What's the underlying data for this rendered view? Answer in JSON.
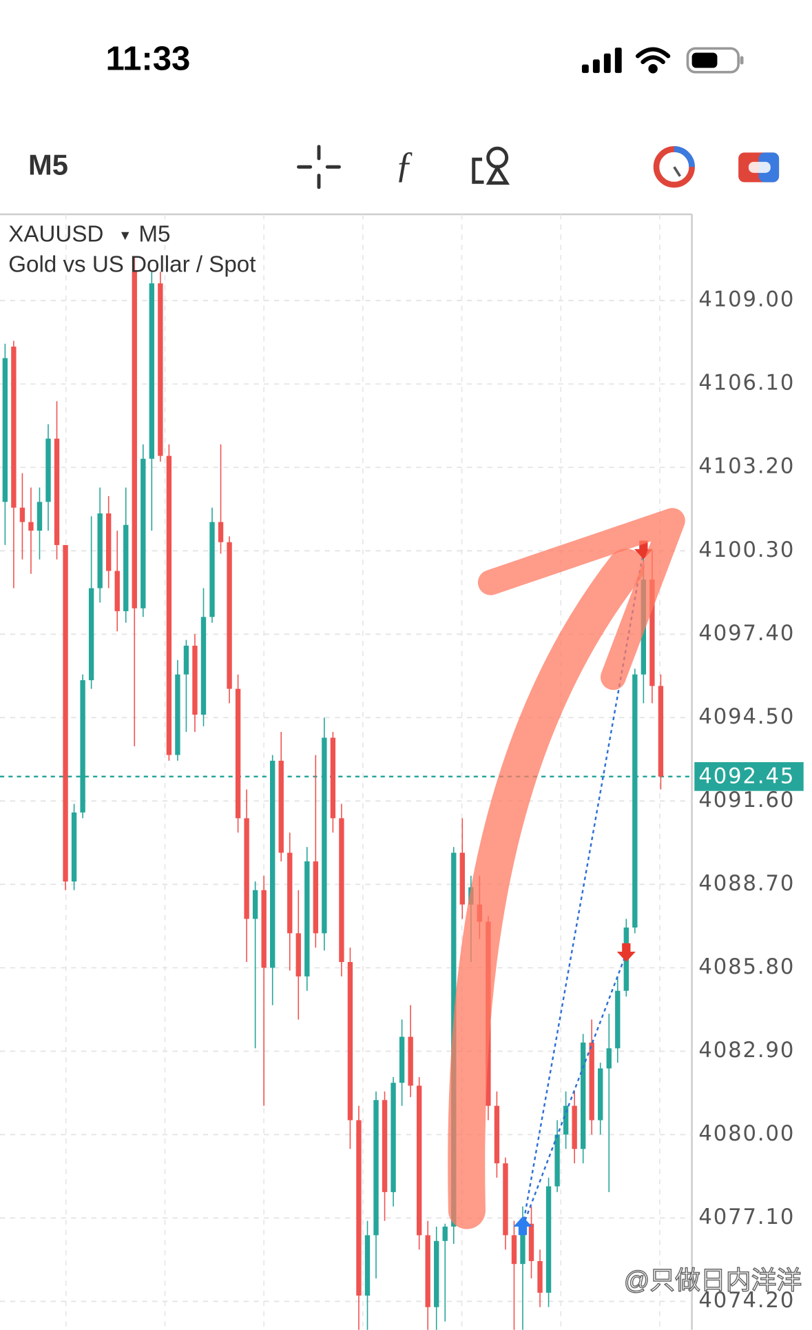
{
  "status_bar": {
    "time": "11:33"
  },
  "toolbar": {
    "timeframe": "M5"
  },
  "chart_data": {
    "type": "candlestick",
    "symbol": "XAUUSD",
    "timeframe": "M5",
    "subtitle": "Gold vs US Dollar / Spot",
    "up_color": "#26a69a",
    "down_color": "#ef5350",
    "categories": [
      null,
      null,
      null,
      null,
      null,
      null,
      null,
      null,
      null,
      null,
      null,
      null,
      null,
      null,
      null,
      null,
      null,
      null,
      null,
      null,
      null,
      null,
      null,
      null,
      null,
      null,
      null,
      null,
      null,
      null,
      null,
      null,
      null,
      null,
      null,
      null,
      null,
      null,
      null,
      null,
      null,
      null,
      null,
      null,
      null,
      null,
      null,
      null,
      null,
      null,
      null,
      null,
      null,
      null,
      null,
      null,
      null,
      null,
      null,
      null,
      null,
      null,
      null,
      null,
      null,
      null,
      null,
      null,
      null,
      null,
      null,
      null,
      null,
      null,
      null,
      null,
      null
    ],
    "open": [
      4102,
      4107.4,
      4101.8,
      4101.3,
      4101,
      4102,
      4104.2,
      4100.5,
      4088.8,
      4091.2,
      4095.8,
      4099,
      4101.6,
      4099.6,
      4098.2,
      4110,
      4098.3,
      4103.5,
      4109.6,
      4103.6,
      4093.2,
      4096,
      4097,
      4094.6,
      4098,
      4101.3,
      4100.6,
      4095.5,
      4091,
      4087.5,
      4088.5,
      4085.8,
      4093,
      4089.8,
      4087,
      4085.5,
      4089.5,
      4087,
      4093.8,
      4091,
      4086,
      4080.5,
      4074.4,
      4076.5,
      4081.2,
      4078,
      4081.8,
      4083.4,
      4081.7,
      4076.5,
      4074,
      4076.3,
      4076.8,
      4089.8,
      4088,
      4088,
      4087.4,
      4081,
      4079,
      4076.5,
      4075.5,
      4076.9,
      4075.6,
      4074.5,
      4078.2,
      4080,
      4081,
      4079.5,
      4083.2,
      4080.5,
      4082.3,
      4083,
      4085,
      4087.2,
      4096,
      4099.3,
      4095.6
    ],
    "high": [
      4107.5,
      4107.6,
      4103,
      4102.5,
      4102.5,
      4104.7,
      4105.5,
      4100.5,
      4091.5,
      4096,
      4101.5,
      4102.5,
      4102.2,
      4101,
      4102.5,
      4110.5,
      4104,
      4110,
      4110,
      4104,
      4096.5,
      4097.2,
      4097.4,
      4099,
      4101.8,
      4104,
      4100.8,
      4096,
      4092,
      4088.8,
      4089,
      4093.2,
      4094,
      4090.5,
      4088.5,
      4090,
      4093.2,
      4094.5,
      4094,
      4091.5,
      4086.5,
      4081,
      4077,
      4081.5,
      4081.5,
      4082,
      4084,
      4084.5,
      4082,
      4077,
      4076.8,
      4076.9,
      4090,
      4091,
      4089,
      4089,
      4087.6,
      4081.5,
      4079.2,
      4077,
      4077.5,
      4077.5,
      4076,
      4078.5,
      4080.5,
      4081.5,
      4081.5,
      4083.5,
      4084,
      4082.5,
      4084.2,
      4085.5,
      4087.5,
      4096.2,
      4100.5,
      4100.3,
      4096
    ],
    "low": [
      4100.5,
      4099,
      4100,
      4099.5,
      4100,
      4101,
      4100,
      4088.5,
      4088.5,
      4091,
      4095.5,
      4098.5,
      4099,
      4097.5,
      4097.8,
      4093.5,
      4098,
      4101,
      4103.4,
      4093,
      4093,
      4094,
      4094,
      4094.2,
      4097.8,
      4100.2,
      4095,
      4090.5,
      4086,
      4083,
      4081,
      4084.5,
      4089.5,
      4085.7,
      4084,
      4085,
      4086.5,
      4086.4,
      4090.5,
      4085.5,
      4079.5,
      4072,
      4073,
      4075,
      4077,
      4077.5,
      4081,
      4081.3,
      4076,
      4073,
      4073,
      4073.5,
      4076.2,
      4087.5,
      4086,
      4086.8,
      4080.5,
      4078.5,
      4076,
      4073,
      4073,
      4075,
      4074,
      4074,
      4078,
      4079.5,
      4079,
      4079,
      4080,
      4080,
      4078,
      4082.5,
      4084.8,
      4087,
      4095,
      4095,
      4092
    ],
    "close": [
      4107,
      4101.8,
      4101.3,
      4101,
      4102,
      4104.2,
      4100.5,
      4088.8,
      4091.2,
      4095.8,
      4099,
      4101.6,
      4099.6,
      4098.2,
      4101.2,
      4098.3,
      4103.5,
      4109.6,
      4103.6,
      4093.2,
      4096,
      4097,
      4094.6,
      4098,
      4101.3,
      4100.6,
      4095.5,
      4091,
      4087.5,
      4088.5,
      4085.8,
      4093,
      4089.8,
      4087,
      4085.5,
      4089.5,
      4087,
      4093.8,
      4091,
      4086,
      4080.5,
      4074.4,
      4076.5,
      4081.2,
      4078,
      4081.8,
      4083.4,
      4081.7,
      4076.5,
      4074,
      4076.3,
      4076.8,
      4089.8,
      4088,
      4088.6,
      4087.4,
      4081,
      4079,
      4076.5,
      4075.5,
      4076.9,
      4075.6,
      4074.5,
      4078.2,
      4080,
      4081,
      4079.5,
      4083.2,
      4080.5,
      4082.3,
      4083,
      4085,
      4087.2,
      4096,
      4099.3,
      4095.6,
      4092.45
    ],
    "ylim": [
      4073.3,
      4112.0
    ],
    "yticks": [
      {
        "value": 4109,
        "label": "4109.00"
      },
      {
        "value": 4106.1,
        "label": "4106.10"
      },
      {
        "value": 4103.2,
        "label": "4103.20"
      },
      {
        "value": 4100.3,
        "label": "4100.30"
      },
      {
        "value": 4097.4,
        "label": "4097.40"
      },
      {
        "value": 4094.5,
        "label": "4094.50"
      },
      {
        "value": 4091.6,
        "label": "4091.60"
      },
      {
        "value": 4088.7,
        "label": "4088.70"
      },
      {
        "value": 4085.8,
        "label": "4085.80"
      },
      {
        "value": 4082.9,
        "label": "4082.90"
      },
      {
        "value": 4080,
        "label": "4080.00"
      },
      {
        "value": 4077.1,
        "label": "4077.10"
      },
      {
        "value": 4074.2,
        "label": "4074.20"
      }
    ],
    "grid": true,
    "current_price": 4092.45,
    "trade_markers": {
      "buy": [
        {
          "index": 60,
          "price": 4076.8
        }
      ],
      "sell": [
        {
          "index": 74,
          "price": 4100.3
        },
        {
          "index": 72,
          "price": 4086.3
        }
      ]
    }
  },
  "watermark": "@只做日内洋洋"
}
